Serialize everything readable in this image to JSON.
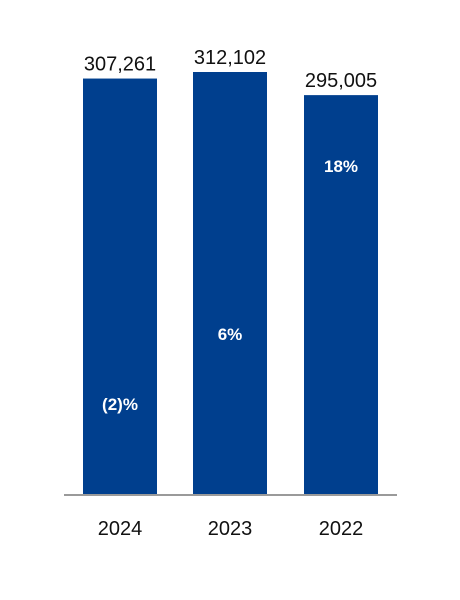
{
  "chart_data": {
    "type": "bar",
    "categories": [
      "2024",
      "2023",
      "2022"
    ],
    "values": [
      307261,
      312102,
      295005
    ],
    "value_labels": [
      "307,261",
      "312,102",
      "295,005"
    ],
    "change_labels": [
      "(2)%",
      "6%",
      "18%"
    ],
    "ylim": [
      0,
      312102
    ],
    "grid": false,
    "bar_color": "#003f8e",
    "axis_color": "#9a9a9a",
    "title": "",
    "xlabel": "",
    "ylabel": ""
  }
}
